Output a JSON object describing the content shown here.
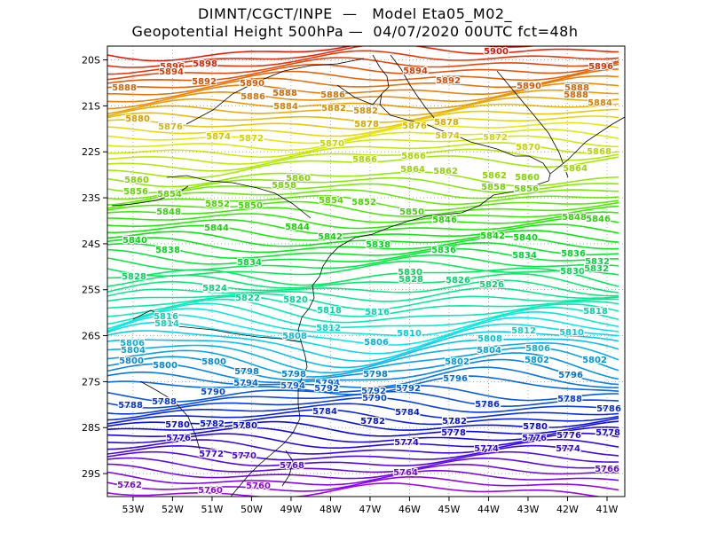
{
  "title": {
    "line1": "DIMNT/CGCT/INPE  —   Model Eta05_M02_",
    "line2": "Geopotential Height 500hPa —  04/07/2020 00UTC fct=48h"
  },
  "map_data": {
    "variable": "Geopotential Height 500hPa",
    "units": "gpm",
    "contour_interval": 2,
    "lon_range": [
      -53.65,
      -40.55
    ],
    "lat_range": [
      -29.5,
      -19.7
    ],
    "lon_ticks": [
      "53W",
      "52W",
      "51W",
      "50W",
      "49W",
      "48W",
      "47W",
      "46W",
      "45W",
      "44W",
      "43W",
      "42W",
      "41W"
    ],
    "lat_ticks": [
      "20S",
      "21S",
      "22S",
      "23S",
      "24S",
      "25S",
      "26S",
      "27S",
      "28S",
      "29S"
    ],
    "contour_labels": [
      "5888",
      "5894",
      "5896",
      "5892",
      "5898",
      "5900",
      "5886",
      "5890",
      "5884",
      "5888",
      "5882",
      "5896",
      "5878",
      "5880",
      "5876",
      "5894",
      "5874",
      "5892",
      "5872",
      "5890",
      "5870",
      "5888",
      "5888",
      "5886",
      "5884",
      "5882",
      "5880",
      "5866",
      "5876",
      "5878",
      "5874",
      "5862",
      "5872",
      "5860",
      "5858",
      "5864",
      "5870",
      "5868",
      "5866",
      "5860",
      "5864",
      "5854",
      "5862",
      "5852",
      "5858",
      "5850",
      "5856",
      "5860",
      "5848",
      "5854",
      "5846",
      "5852",
      "5856",
      "5850",
      "5848",
      "5846",
      "5844",
      "5842",
      "5834",
      "5840",
      "5844",
      "5836",
      "5842",
      "5832",
      "5838",
      "5840",
      "5828",
      "5838",
      "5836",
      "5824",
      "5826",
      "5822",
      "5834",
      "5820",
      "5830",
      "5818",
      "5832",
      "5816",
      "5828",
      "5830",
      "5814",
      "5826",
      "5824",
      "5808",
      "5822",
      "5812",
      "5820",
      "5810",
      "5812",
      "5818",
      "5806",
      "5804",
      "5810",
      "5816",
      "5802",
      "5800",
      "5808",
      "5798",
      "5806",
      "5808",
      "5796",
      "5794",
      "5802",
      "5798",
      "5806",
      "5792",
      "5800",
      "5796",
      "5790",
      "5804",
      "5794",
      "5802",
      "5798",
      "5788",
      "5792",
      "5786",
      "5790",
      "5800",
      "5784",
      "5788",
      "5796",
      "5782",
      "5786",
      "5780",
      "5780",
      "5794",
      "5776",
      "5784",
      "5778",
      "5792",
      "5788",
      "5774",
      "5776",
      "5782",
      "5772",
      "5786",
      "5770",
      "5780",
      "5768",
      "5774",
      "5784",
      "5766",
      "5782",
      "5762",
      "5764",
      "5780",
      "5778",
      "5760",
      "5774",
      "5760",
      "5776"
    ]
  }
}
